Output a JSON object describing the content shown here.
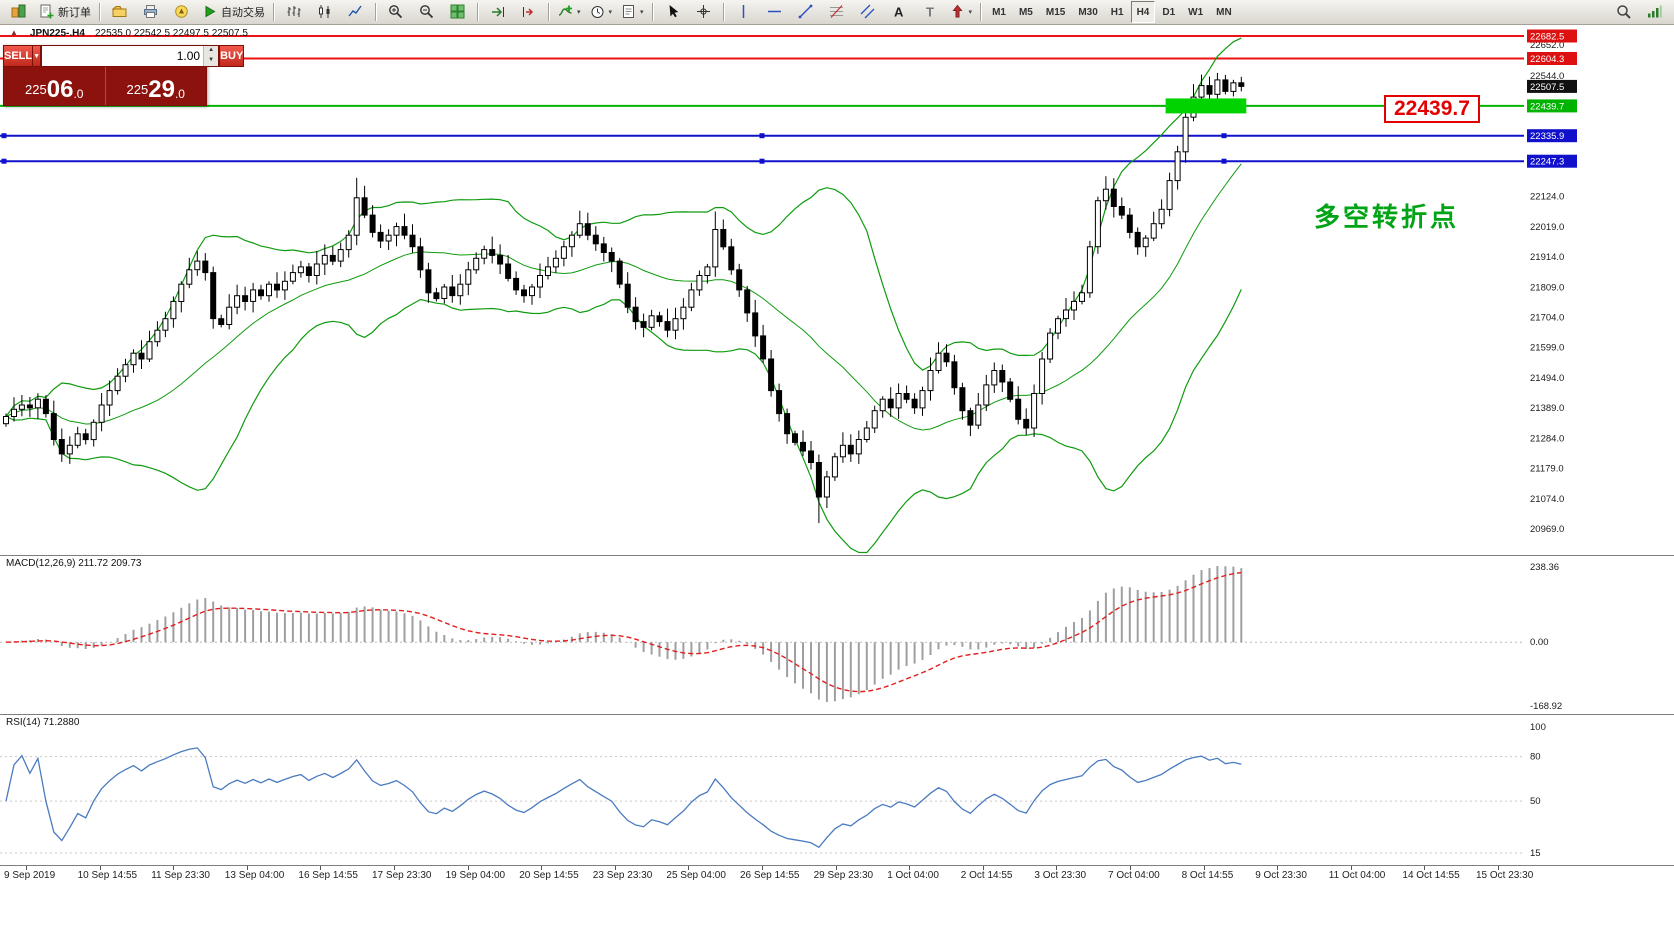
{
  "toolbar": {
    "items": [
      {
        "name": "app-logo-button",
        "icon": "app-logo-icon"
      },
      {
        "name": "new-order-button",
        "icon": "new-order-icon",
        "label": "新订单"
      },
      {
        "sep": true
      },
      {
        "name": "profiles-button",
        "icon": "profiles-icon"
      },
      {
        "name": "print-button",
        "icon": "print-icon"
      },
      {
        "name": "metaeditor-button",
        "icon": "metaeditor-icon"
      },
      {
        "name": "auto-trading-button",
        "icon": "play-icon",
        "label": "自动交易"
      },
      {
        "sep": true
      },
      {
        "name": "bar-chart-button",
        "icon": "bar-chart-icon"
      },
      {
        "name": "candlestick-chart-button",
        "icon": "candlestick-icon"
      },
      {
        "name": "line-chart-button",
        "icon": "line-chart-icon"
      },
      {
        "sep": true
      },
      {
        "name": "zoom-in-button",
        "icon": "zoom-in-icon"
      },
      {
        "name": "zoom-out-button",
        "icon": "zoom-out-icon"
      },
      {
        "name": "tile-windows-button",
        "icon": "tile-windows-icon"
      },
      {
        "sep": true
      },
      {
        "name": "auto-scroll-button",
        "icon": "auto-scroll-icon"
      },
      {
        "name": "chart-shift-button",
        "icon": "chart-shift-icon"
      },
      {
        "sep": true
      },
      {
        "name": "indicators-button",
        "icon": "indicators-add-icon",
        "arrow": true
      },
      {
        "name": "periods-button",
        "icon": "periods-icon",
        "arrow": true
      },
      {
        "name": "templates-button",
        "icon": "templates-icon",
        "arrow": true
      },
      {
        "sep": true
      },
      {
        "name": "cursor-button",
        "icon": "cursor-icon"
      },
      {
        "name": "crosshair-button",
        "icon": "crosshair-icon"
      },
      {
        "sep": true
      },
      {
        "name": "vertical-line-button",
        "icon": "vertical-line-icon"
      },
      {
        "name": "horizontal-line-button",
        "icon": "horizontal-line-icon"
      },
      {
        "name": "trendline-button",
        "icon": "trendline-icon"
      },
      {
        "name": "fibonacci-button",
        "icon": "fibonacci-icon"
      },
      {
        "name": "channel-button",
        "icon": "channel-icon"
      },
      {
        "name": "text-button",
        "icon": "text-icon"
      },
      {
        "name": "text-label-button",
        "icon": "label-icon"
      },
      {
        "name": "arrows-button",
        "icon": "arrows-icon",
        "arrow": true
      },
      {
        "sep": true
      }
    ],
    "timeframes": [
      "M1",
      "M5",
      "M15",
      "M30",
      "H1",
      "H4",
      "D1",
      "W1",
      "MN"
    ],
    "active_timeframe": "H4",
    "right_items": [
      {
        "name": "search-button",
        "icon": "search-icon"
      },
      {
        "name": "connection-button",
        "icon": "connection-icon"
      }
    ]
  },
  "chart_header": {
    "symbol": "JPN225-.H4",
    "ohlc": "22535.0 22542.5 22497.5 22507.5"
  },
  "one_click": {
    "sell_label": "SELL",
    "buy_label": "BUY",
    "lot_value": "1.00",
    "sell_price": "22506.0",
    "buy_price": "22529.0"
  },
  "annotations": {
    "price_label": "22439.7",
    "note_text": "多空转折点"
  },
  "price_axis": {
    "plain": [
      {
        "label": "22652.0",
        "value": 22652.0
      },
      {
        "label": "22544.0",
        "value": 22544.0
      },
      {
        "label": "22124.0",
        "value": 22124.0
      },
      {
        "label": "22019.0",
        "value": 22019.0
      },
      {
        "label": "21914.0",
        "value": 21914.0
      },
      {
        "label": "21809.0",
        "value": 21809.0
      },
      {
        "label": "21704.0",
        "value": 21704.0
      },
      {
        "label": "21599.0",
        "value": 21599.0
      },
      {
        "label": "21494.0",
        "value": 21494.0
      },
      {
        "label": "21389.0",
        "value": 21389.0
      },
      {
        "label": "21284.0",
        "value": 21284.0
      },
      {
        "label": "21179.0",
        "value": 21179.0
      },
      {
        "label": "21074.0",
        "value": 21074.0
      },
      {
        "label": "20969.0",
        "value": 20969.0
      }
    ],
    "tags": [
      {
        "label": "22682.5",
        "value": 22682.5,
        "bg": "#dd1111"
      },
      {
        "label": "22604.3",
        "value": 22604.3,
        "bg": "#dd1111"
      },
      {
        "label": "22507.5",
        "value": 22507.5,
        "bg": "#111111"
      },
      {
        "label": "22439.7",
        "value": 22439.7,
        "bg": "#00b300"
      },
      {
        "label": "22335.9",
        "value": 22335.9,
        "bg": "#1111cc"
      },
      {
        "label": "22247.3",
        "value": 22247.3,
        "bg": "#1111cc"
      }
    ]
  },
  "hlines": [
    {
      "price": 22682.5,
      "color": "#ee1111",
      "handles": false
    },
    {
      "price": 22604.3,
      "color": "#ee1111",
      "handles": false
    },
    {
      "price": 22439.7,
      "color": "#00b300",
      "handles": false
    },
    {
      "price": 22335.9,
      "color": "#1111cc",
      "handles": true
    },
    {
      "price": 22247.3,
      "color": "#1111cc",
      "handles": true
    }
  ],
  "highlight_zone": {
    "price": 22439.7,
    "from_bar": 146,
    "to_bar": 155,
    "color": "#00d300"
  },
  "macd": {
    "label": "MACD(12,26,9) 211.72 209.73",
    "axis": [
      "238.36",
      "0.00",
      "-168.92"
    ],
    "current_main": 211.72,
    "current_signal": 209.73
  },
  "rsi": {
    "label": "RSI(14) 71.2880",
    "axis": [
      "100",
      "80",
      "50",
      "15"
    ],
    "levels": [
      80,
      50,
      15
    ],
    "current": 71.288
  },
  "time_axis": [
    "9 Sep 2019",
    "10 Sep 14:55",
    "11 Sep 23:30",
    "13 Sep 04:00",
    "16 Sep 14:55",
    "17 Sep 23:30",
    "19 Sep 04:00",
    "20 Sep 14:55",
    "23 Sep 23:30",
    "25 Sep 04:00",
    "26 Sep 14:55",
    "29 Sep 23:30",
    "1 Oct 04:00",
    "2 Oct 14:55",
    "3 Oct 23:30",
    "7 Oct 04:00",
    "8 Oct 14:55",
    "9 Oct 23:30",
    "11 Oct 04:00",
    "14 Oct 14:55",
    "15 Oct 23:30"
  ],
  "chart_data": {
    "type": "candlestick",
    "symbol": "JPN225-",
    "timeframe": "H4",
    "ohlc_current": {
      "open": 22535.0,
      "high": 22542.5,
      "low": 22497.5,
      "close": 22507.5
    },
    "price_axis_range": {
      "top": 22682.5,
      "bottom": 20969.0
    },
    "levels": [
      22682.5,
      22604.3,
      22439.7,
      22335.9,
      22247.3
    ],
    "bollinger": {
      "period": 20,
      "deviation": 2
    },
    "macd_params": {
      "fast": 12,
      "slow": 26,
      "signal": 9
    },
    "rsi_params": {
      "period": 14
    },
    "closes": [
      21360,
      21385,
      21400,
      21390,
      21420,
      21370,
      21280,
      21230,
      21260,
      21300,
      21280,
      21340,
      21400,
      21450,
      21500,
      21540,
      21580,
      21560,
      21620,
      21660,
      21700,
      21760,
      21820,
      21870,
      21900,
      21860,
      21700,
      21680,
      21740,
      21780,
      21760,
      21800,
      21780,
      21820,
      21800,
      21830,
      21860,
      21880,
      21850,
      21890,
      21920,
      21900,
      21940,
      21990,
      22120,
      22060,
      22000,
      21970,
      21990,
      22020,
      21990,
      21950,
      21870,
      21790,
      21770,
      21810,
      21780,
      21820,
      21870,
      21910,
      21940,
      21920,
      21890,
      21840,
      21800,
      21780,
      21810,
      21850,
      21880,
      21910,
      21950,
      21990,
      22030,
      21990,
      21960,
      21930,
      21900,
      21820,
      21740,
      21690,
      21670,
      21710,
      21690,
      21660,
      21700,
      21740,
      21800,
      21850,
      21880,
      22010,
      21950,
      21870,
      21800,
      21720,
      21640,
      21560,
      21450,
      21370,
      21300,
      21270,
      21240,
      21200,
      21080,
      21150,
      21220,
      21260,
      21230,
      21280,
      21320,
      21380,
      21420,
      21390,
      21440,
      21420,
      21390,
      21450,
      21520,
      21580,
      21550,
      21460,
      21380,
      21330,
      21400,
      21470,
      21520,
      21480,
      21420,
      21350,
      21320,
      21440,
      21560,
      21650,
      21700,
      21730,
      21760,
      21790,
      21950,
      22110,
      22150,
      22090,
      22060,
      22000,
      21950,
      21980,
      22030,
      22080,
      22180,
      22280,
      22400,
      22470,
      22510,
      22480,
      22530,
      22490,
      22520,
      22507.5
    ]
  }
}
